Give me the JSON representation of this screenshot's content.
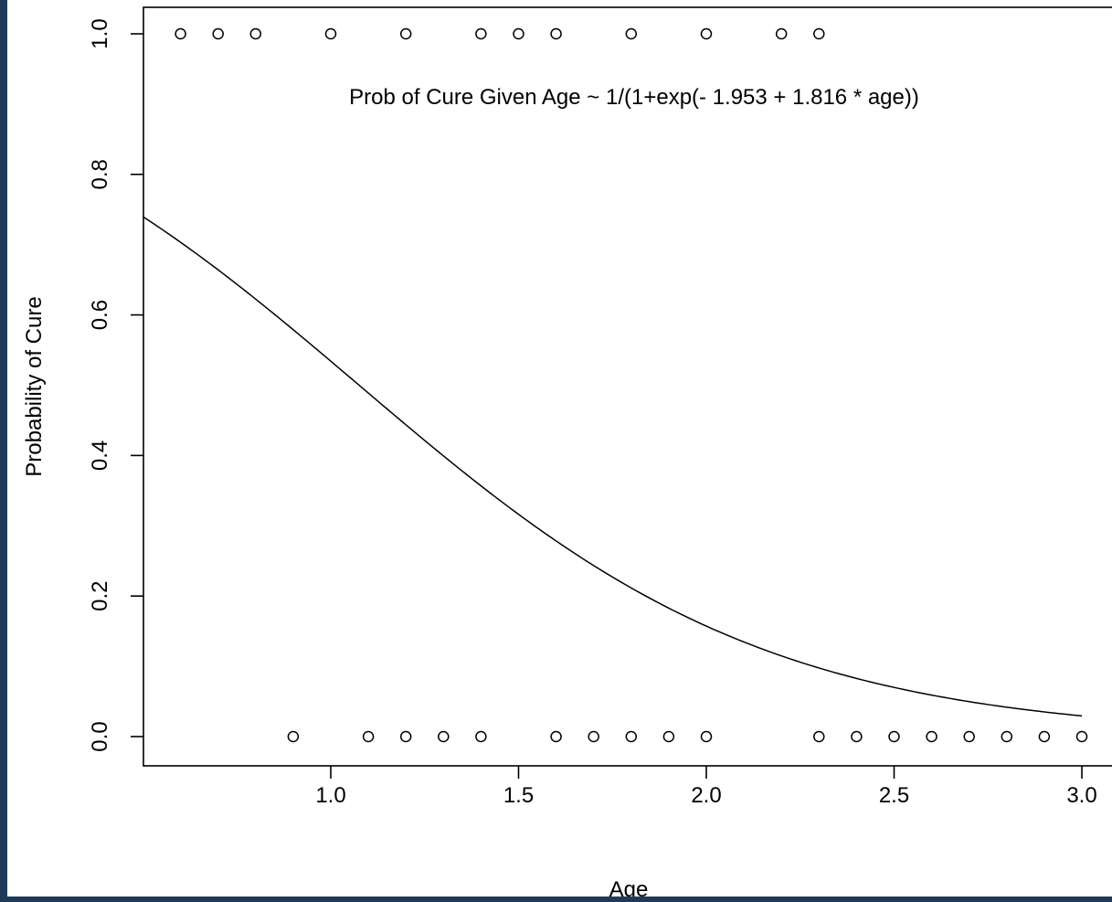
{
  "colors": {
    "frame": "#1b3a5c",
    "background": "#ffffff",
    "ink": "#000000"
  },
  "chart_data": {
    "type": "scatter",
    "title": "",
    "xlabel": "Age",
    "ylabel": "Probability of Cure",
    "annotation": "Prob of Cure Given Age ~ 1/(1+exp(- 1.953 + 1.816  * age))",
    "xlim": [
      0.5,
      3.0
    ],
    "ylim": [
      0.0,
      1.0
    ],
    "x_ticks": [
      1.0,
      1.5,
      2.0,
      2.5,
      3.0
    ],
    "x_tick_labels": [
      "1.0",
      "1.5",
      "2.0",
      "2.5",
      "3.0"
    ],
    "y_ticks": [
      0.0,
      0.2,
      0.4,
      0.6,
      0.8,
      1.0
    ],
    "y_tick_labels": [
      "0.0",
      "0.2",
      "0.4",
      "0.6",
      "0.8",
      "1.0"
    ],
    "grid": false,
    "series": [
      {
        "type": "scatter",
        "marker": "open-circle",
        "points": [
          {
            "x": 0.6,
            "y": 1
          },
          {
            "x": 0.7,
            "y": 1
          },
          {
            "x": 0.8,
            "y": 1
          },
          {
            "x": 1.0,
            "y": 1
          },
          {
            "x": 1.2,
            "y": 1
          },
          {
            "x": 1.4,
            "y": 1
          },
          {
            "x": 1.5,
            "y": 1
          },
          {
            "x": 1.6,
            "y": 1
          },
          {
            "x": 1.8,
            "y": 1
          },
          {
            "x": 2.0,
            "y": 1
          },
          {
            "x": 2.2,
            "y": 1
          },
          {
            "x": 2.3,
            "y": 1
          },
          {
            "x": 0.9,
            "y": 0
          },
          {
            "x": 1.1,
            "y": 0
          },
          {
            "x": 1.2,
            "y": 0
          },
          {
            "x": 1.3,
            "y": 0
          },
          {
            "x": 1.4,
            "y": 0
          },
          {
            "x": 1.6,
            "y": 0
          },
          {
            "x": 1.7,
            "y": 0
          },
          {
            "x": 1.8,
            "y": 0
          },
          {
            "x": 1.9,
            "y": 0
          },
          {
            "x": 2.0,
            "y": 0
          },
          {
            "x": 2.3,
            "y": 0
          },
          {
            "x": 2.4,
            "y": 0
          },
          {
            "x": 2.5,
            "y": 0
          },
          {
            "x": 2.6,
            "y": 0
          },
          {
            "x": 2.7,
            "y": 0
          },
          {
            "x": 2.8,
            "y": 0
          },
          {
            "x": 2.9,
            "y": 0
          },
          {
            "x": 3.0,
            "y": 0
          }
        ]
      },
      {
        "type": "line",
        "intercept": 1.953,
        "slope": -1.816,
        "x_range": [
          0.5,
          3.0
        ]
      }
    ]
  }
}
